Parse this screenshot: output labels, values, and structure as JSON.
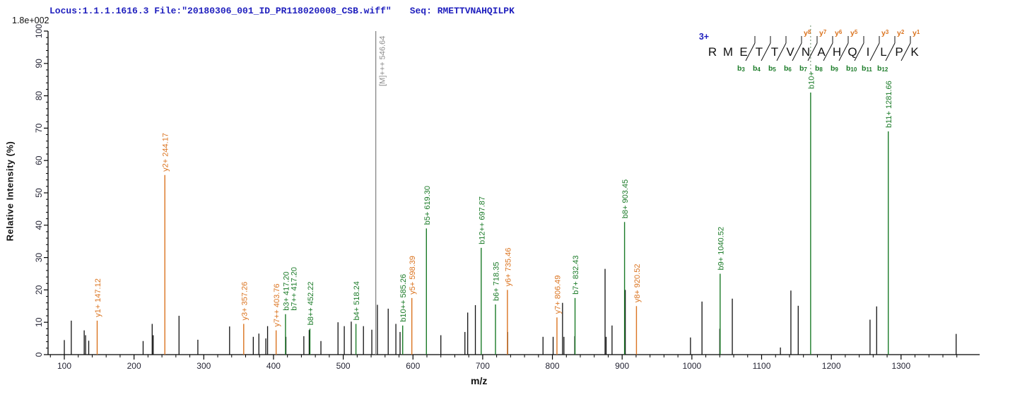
{
  "header": {
    "locus_file": "Locus:1.1.1.1616.3 File:\"20180306_001_ID_PR118020008_CSB.wiff\"",
    "seq": "Seq: RMETTVNAHQILPK"
  },
  "scale_note": "1.8e+002",
  "colors": {
    "header_blue": "#1f1fbe",
    "y_ion_orange": "#db7420",
    "b_ion_green": "#1b7b28",
    "precursor_gray": "#8c8c8c",
    "peak_black": "#111111",
    "axis_black": "#000000",
    "tick_label": "#252535"
  },
  "sequence_panel": {
    "charge": "3+",
    "residues": [
      "R",
      "M",
      "E",
      "T",
      "T",
      "V",
      "N",
      "A",
      "H",
      "Q",
      "I",
      "L",
      "P",
      "K"
    ],
    "boundaries": [
      {
        "after_index": 2,
        "b": "b3"
      },
      {
        "after_index": 3,
        "b": "b4"
      },
      {
        "after_index": 4,
        "b": "b5"
      },
      {
        "after_index": 5,
        "b": "b6",
        "y": "y8",
        "dashed": true
      },
      {
        "after_index": 6,
        "b": "b7",
        "y": "y7"
      },
      {
        "after_index": 7,
        "b": "b8",
        "y": "y6"
      },
      {
        "after_index": 8,
        "b": "b9",
        "y": "y5"
      },
      {
        "after_index": 9,
        "b": "b10"
      },
      {
        "after_index": 10,
        "b": "b11",
        "y": "y3"
      },
      {
        "after_index": 11,
        "b": "b12",
        "y": "y2"
      },
      {
        "after_index": 12,
        "y": "y1"
      }
    ]
  },
  "chart_data": {
    "type": "bar",
    "subtype": "ms2-stick-spectrum",
    "xlabel": "m/z",
    "ylabel": "Relative  Intensity (%)",
    "xlim": [
      80,
      1410
    ],
    "ylim": [
      0,
      100
    ],
    "x_ticks": [
      100,
      200,
      300,
      400,
      500,
      600,
      700,
      800,
      900,
      1000,
      1100,
      1200,
      1300
    ],
    "x_minor_step": 20,
    "y_ticks": [
      0,
      10,
      20,
      30,
      40,
      50,
      60,
      70,
      80,
      90,
      100
    ],
    "y_minor_step": 2,
    "annotated_peaks": [
      {
        "mz": 147.12,
        "intensity": 10.5,
        "ion": "y",
        "label": "y1+ 147.12"
      },
      {
        "mz": 244.17,
        "intensity": 55.5,
        "ion": "y",
        "label": "y2+ 244.17"
      },
      {
        "mz": 357.26,
        "intensity": 9.5,
        "ion": "y",
        "label": "y3+ 357.26"
      },
      {
        "mz": 403.76,
        "intensity": 7.5,
        "ion": "y",
        "label": "y7++ 403.76"
      },
      {
        "mz": 417.2,
        "intensity": 12.5,
        "ion": "b",
        "label": "b3+ 417.20",
        "label2": "b7++ 417.20"
      },
      {
        "mz": 452.22,
        "intensity": 8.0,
        "ion": "b",
        "label": "b8++ 452.22"
      },
      {
        "mz": 518.24,
        "intensity": 9.5,
        "ion": "b",
        "label": "b4+ 518.24"
      },
      {
        "mz": 546.64,
        "intensity": 100,
        "ion": "precursor",
        "label": "[M]+++ 546.64"
      },
      {
        "mz": 585.26,
        "intensity": 9.0,
        "ion": "b",
        "label": "b10++ 585.26"
      },
      {
        "mz": 598.39,
        "intensity": 17.5,
        "ion": "y",
        "label": "y5+ 598.39"
      },
      {
        "mz": 619.3,
        "intensity": 39.0,
        "ion": "b",
        "label": "b5+ 619.30"
      },
      {
        "mz": 697.87,
        "intensity": 33.0,
        "ion": "b",
        "label": "b12++ 697.87"
      },
      {
        "mz": 718.35,
        "intensity": 15.5,
        "ion": "b",
        "label": "b6+ 718.35"
      },
      {
        "mz": 735.46,
        "intensity": 20.0,
        "ion": "y",
        "label": "y6+ 735.46"
      },
      {
        "mz": 806.49,
        "intensity": 11.5,
        "ion": "y",
        "label": "y7+ 806.49"
      },
      {
        "mz": 832.43,
        "intensity": 17.5,
        "ion": "b",
        "label": "b7+ 832.43"
      },
      {
        "mz": 903.45,
        "intensity": 41.0,
        "ion": "b",
        "label": "b8+ 903.45"
      },
      {
        "mz": 920.52,
        "intensity": 15.0,
        "ion": "y",
        "label": "y8+ 920.52"
      },
      {
        "mz": 1040.52,
        "intensity": 25.0,
        "ion": "b",
        "label": "b9+ 1040.52"
      },
      {
        "mz": 1170.3,
        "intensity": 81.0,
        "ion": "b",
        "label": "b10+"
      },
      {
        "mz": 1281.66,
        "intensity": 69.0,
        "ion": "b",
        "label": "b11+ 1281.66"
      }
    ],
    "unannotated_peaks": [
      [
        100,
        4.5
      ],
      [
        110,
        10.5
      ],
      [
        128.5,
        7.5
      ],
      [
        130.5,
        6
      ],
      [
        135,
        4.3
      ],
      [
        213,
        4.2
      ],
      [
        226,
        9.5
      ],
      [
        227.5,
        6
      ],
      [
        264.5,
        12
      ],
      [
        291.5,
        4.6
      ],
      [
        337,
        8.7
      ],
      [
        371,
        5.5
      ],
      [
        379,
        6.5
      ],
      [
        389,
        5
      ],
      [
        391.5,
        8.8
      ],
      [
        417.8,
        5.5
      ],
      [
        443.5,
        5.7
      ],
      [
        451.2,
        7.6
      ],
      [
        468,
        4.2
      ],
      [
        492.5,
        10
      ],
      [
        501.5,
        8.8
      ],
      [
        511.5,
        10.2
      ],
      [
        529,
        8.8
      ],
      [
        541,
        7.7
      ],
      [
        549,
        15.4
      ],
      [
        564.5,
        14.2
      ],
      [
        575.5,
        9.5
      ],
      [
        581.5,
        7
      ],
      [
        640,
        6
      ],
      [
        674.5,
        7
      ],
      [
        678.5,
        13
      ],
      [
        689.5,
        15.3
      ],
      [
        735.8,
        7
      ],
      [
        786.5,
        5.5
      ],
      [
        801,
        5.5
      ],
      [
        814.5,
        16
      ],
      [
        816.5,
        5.5
      ],
      [
        832,
        5.7
      ],
      [
        875.5,
        26.5
      ],
      [
        877,
        5.5
      ],
      [
        885.5,
        9
      ],
      [
        904.5,
        20
      ],
      [
        998,
        5.3
      ],
      [
        1014.5,
        16.4
      ],
      [
        1040,
        8
      ],
      [
        1058,
        17.3
      ],
      [
        1127,
        2.2
      ],
      [
        1142,
        19.8
      ],
      [
        1152.5,
        15.1
      ],
      [
        1255.5,
        10.8
      ],
      [
        1265,
        14.9
      ],
      [
        1379,
        6.4
      ]
    ]
  }
}
